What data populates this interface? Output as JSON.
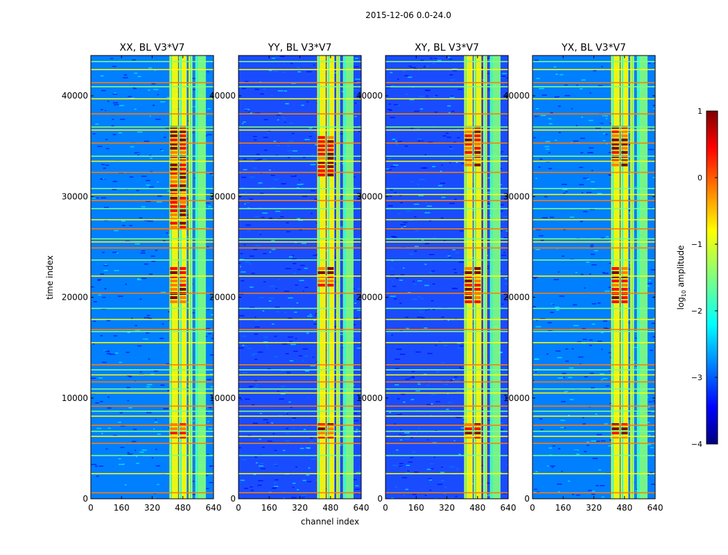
{
  "figure": {
    "suptitle": "2015-12-06 0.0-24.0",
    "xlabel": "channel index",
    "ylabel": "time index"
  },
  "colors": {
    "jet": [
      "#00007f",
      "#0000ff",
      "#007fff",
      "#00ffff",
      "#7fff7f",
      "#ffff00",
      "#ff7f00",
      "#ff0000",
      "#7f0000"
    ]
  },
  "chart_data": [
    {
      "type": "heatmap",
      "title": "XX, BL V3*V7",
      "xlim": [
        0,
        640
      ],
      "ylim": [
        0,
        44000
      ],
      "xticks": [
        0,
        160,
        320,
        480,
        640
      ],
      "yticks": [
        0,
        10000,
        20000,
        30000,
        40000
      ],
      "color_scale": "log10 amplitude, jet, -4 to 1",
      "bright_channel_bands": [
        [
          410,
          455
        ],
        [
          460,
          500
        ],
        [
          510,
          530
        ],
        [
          545,
          600
        ]
      ],
      "hot_time_ranges": [
        [
          6000,
          7500
        ],
        [
          19500,
          23000
        ],
        [
          27000,
          37000
        ]
      ]
    },
    {
      "type": "heatmap",
      "title": "YY, BL V3*V7",
      "xlim": [
        0,
        640
      ],
      "ylim": [
        0,
        44000
      ],
      "xticks": [
        0,
        160,
        320,
        480,
        640
      ],
      "yticks": [
        0,
        10000,
        20000,
        30000,
        40000
      ],
      "color_scale": "log10 amplitude, jet, -4 to 1",
      "bright_channel_bands": [
        [
          410,
          455
        ],
        [
          460,
          500
        ],
        [
          510,
          530
        ],
        [
          545,
          600
        ]
      ],
      "hot_time_ranges": [
        [
          6000,
          7500
        ],
        [
          21000,
          23000
        ],
        [
          32000,
          36000
        ]
      ]
    },
    {
      "type": "heatmap",
      "title": "XY, BL V3*V7",
      "xlim": [
        0,
        640
      ],
      "ylim": [
        0,
        44000
      ],
      "xticks": [
        0,
        160,
        320,
        480,
        640
      ],
      "yticks": [
        0,
        10000,
        20000,
        30000,
        40000
      ],
      "color_scale": "log10 amplitude, jet, -4 to 1",
      "bright_channel_bands": [
        [
          410,
          455
        ],
        [
          460,
          500
        ],
        [
          510,
          530
        ],
        [
          545,
          600
        ]
      ],
      "hot_time_ranges": [
        [
          6000,
          7500
        ],
        [
          19500,
          23000
        ],
        [
          33000,
          37000
        ]
      ]
    },
    {
      "type": "heatmap",
      "title": "YX, BL V3*V7",
      "xlim": [
        0,
        640
      ],
      "ylim": [
        0,
        44000
      ],
      "xticks": [
        0,
        160,
        320,
        480,
        640
      ],
      "yticks": [
        0,
        10000,
        20000,
        30000,
        40000
      ],
      "color_scale": "log10 amplitude, jet, -4 to 1",
      "bright_channel_bands": [
        [
          410,
          455
        ],
        [
          460,
          500
        ],
        [
          510,
          530
        ],
        [
          545,
          600
        ]
      ],
      "hot_time_ranges": [
        [
          6000,
          7500
        ],
        [
          19500,
          23000
        ],
        [
          33000,
          37000
        ]
      ]
    }
  ],
  "colorbar": {
    "label": "log10 amplitude",
    "label_base": "log",
    "label_sub": "10",
    "label_rest": " amplitude",
    "min": -4,
    "max": 1,
    "ticks": [
      1,
      0,
      -1,
      -2,
      -3,
      -4
    ],
    "tick_labels": [
      "1",
      "0",
      "−1",
      "−2",
      "−3",
      "−4"
    ]
  },
  "horizontal_rfi_rows": [
    600,
    2500,
    4300,
    5500,
    6200,
    6700,
    7300,
    8200,
    8700,
    9200,
    10500,
    10900,
    11600,
    12300,
    12800,
    13300,
    15500,
    16600,
    16800,
    17800,
    18900,
    20400,
    22100,
    23700,
    24900,
    25500,
    25800,
    26800,
    27700,
    28800,
    29600,
    30200,
    30800,
    32400,
    33500,
    34000,
    35300,
    36600,
    36900,
    38200,
    39700,
    40900,
    41300,
    42600,
    43400
  ]
}
